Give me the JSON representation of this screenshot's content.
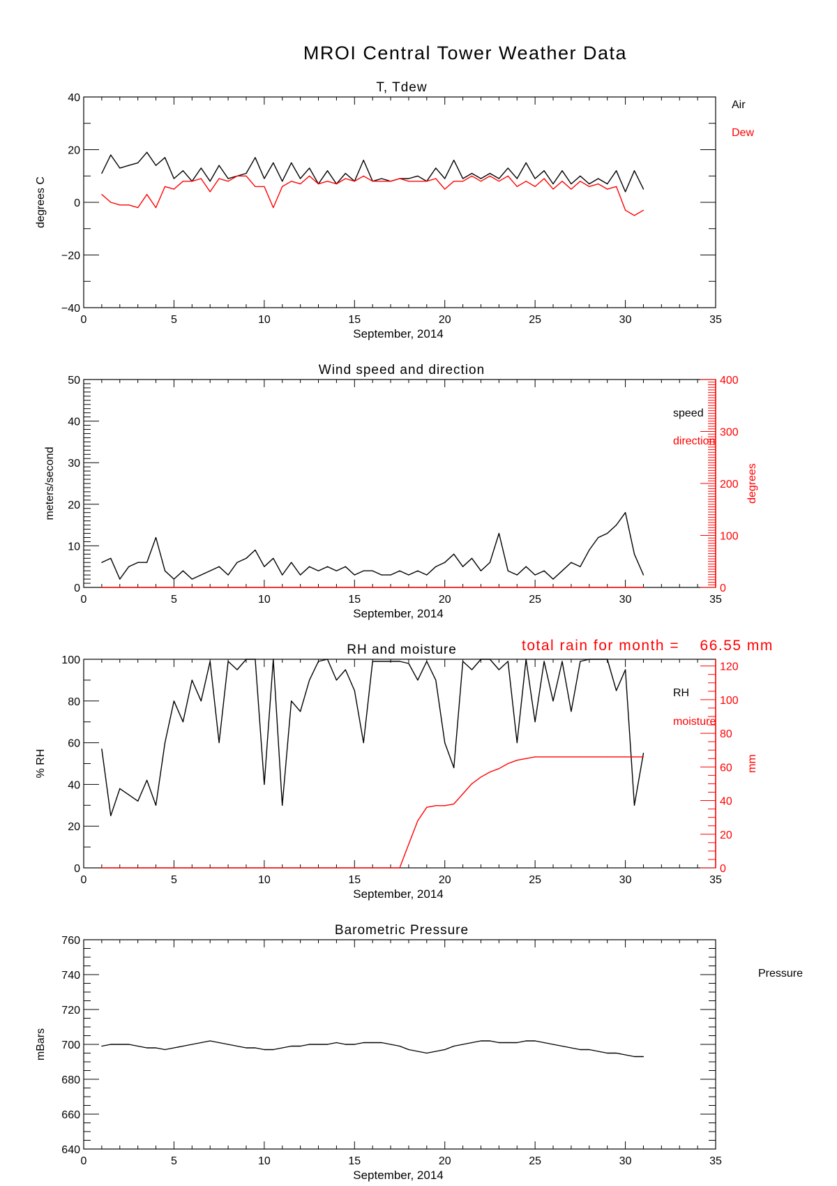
{
  "title": "MROI Central Tower Weather Data",
  "rain_note": "total rain for month =    66.55 mm",
  "colors": {
    "primary": "#000000",
    "secondary": "#ff0000"
  },
  "chart_data": [
    {
      "type": "line",
      "title": "T, Tdew",
      "xlabel": "September, 2014",
      "ylabel": "degrees C",
      "xlim": [
        0,
        35
      ],
      "ylim": [
        -40,
        40
      ],
      "xticks": [
        0,
        5,
        10,
        15,
        20,
        25,
        30,
        35
      ],
      "yticks": [
        -40,
        -20,
        0,
        20,
        40
      ],
      "x": [
        1,
        1.5,
        2,
        2.5,
        3,
        3.5,
        4,
        4.5,
        5,
        5.5,
        6,
        6.5,
        7,
        7.5,
        8,
        8.5,
        9,
        9.5,
        10,
        10.5,
        11,
        11.5,
        12,
        12.5,
        13,
        13.5,
        14,
        14.5,
        15,
        15.5,
        16,
        16.5,
        17,
        17.5,
        18,
        18.5,
        19,
        19.5,
        20,
        20.5,
        21,
        21.5,
        22,
        22.5,
        23,
        23.5,
        24,
        24.5,
        25,
        25.5,
        26,
        26.5,
        27,
        27.5,
        28,
        28.5,
        29,
        29.5,
        30,
        30.5,
        31
      ],
      "series": [
        {
          "name": "Air",
          "color": "#000000",
          "values": [
            11,
            18,
            13,
            14,
            15,
            19,
            14,
            17,
            9,
            12,
            8,
            13,
            8,
            14,
            9,
            10,
            11,
            17,
            9,
            15,
            8,
            15,
            9,
            13,
            7,
            12,
            7,
            11,
            8,
            16,
            8,
            9,
            8,
            9,
            9,
            10,
            8,
            13,
            9,
            16,
            9,
            11,
            9,
            11,
            9,
            13,
            9,
            15,
            9,
            12,
            7,
            12,
            7,
            10,
            7,
            9,
            7,
            12,
            4,
            12,
            5
          ]
        },
        {
          "name": "Dew",
          "color": "#ff0000",
          "values": [
            3,
            0,
            -1,
            -1,
            -2,
            3,
            -2,
            6,
            5,
            8,
            8,
            9,
            4,
            9,
            8,
            10,
            10,
            6,
            6,
            -2,
            6,
            8,
            7,
            10,
            7,
            8,
            7,
            9,
            8,
            10,
            8,
            8,
            8,
            9,
            8,
            8,
            8,
            9,
            5,
            8,
            8,
            10,
            8,
            10,
            8,
            10,
            6,
            8,
            6,
            9,
            5,
            8,
            5,
            8,
            6,
            7,
            5,
            6,
            -3,
            -5,
            -3
          ]
        }
      ]
    },
    {
      "type": "line",
      "title": "Wind speed and direction",
      "xlabel": "September, 2014",
      "ylabel": "meters/second",
      "y2label": "degrees",
      "xlim": [
        0,
        35
      ],
      "ylim": [
        0,
        50
      ],
      "y2lim": [
        0,
        400
      ],
      "xticks": [
        0,
        5,
        10,
        15,
        20,
        25,
        30,
        35
      ],
      "yticks": [
        0,
        10,
        20,
        30,
        40,
        50
      ],
      "y2ticks": [
        0,
        100,
        200,
        300,
        400
      ],
      "x": [
        1,
        1.5,
        2,
        2.5,
        3,
        3.5,
        4,
        4.5,
        5,
        5.5,
        6,
        6.5,
        7,
        7.5,
        8,
        8.5,
        9,
        9.5,
        10,
        10.5,
        11,
        11.5,
        12,
        12.5,
        13,
        13.5,
        14,
        14.5,
        15,
        15.5,
        16,
        16.5,
        17,
        17.5,
        18,
        18.5,
        19,
        19.5,
        20,
        20.5,
        21,
        21.5,
        22,
        22.5,
        23,
        23.5,
        24,
        24.5,
        25,
        25.5,
        26,
        26.5,
        27,
        27.5,
        28,
        28.5,
        29,
        29.5,
        30,
        30.5,
        31
      ],
      "series": [
        {
          "name": "speed",
          "color": "#000000",
          "axis": "left",
          "values": [
            6,
            7,
            2,
            5,
            6,
            6,
            12,
            4,
            2,
            4,
            2,
            3,
            4,
            5,
            3,
            6,
            7,
            9,
            5,
            7,
            3,
            6,
            3,
            5,
            4,
            5,
            4,
            5,
            3,
            4,
            4,
            3,
            3,
            4,
            3,
            4,
            3,
            5,
            6,
            8,
            5,
            7,
            4,
            6,
            13,
            4,
            3,
            5,
            3,
            4,
            2,
            4,
            6,
            5,
            9,
            12,
            13,
            15,
            18,
            8,
            3
          ]
        },
        {
          "name": "direction",
          "color": "#ff0000",
          "axis": "right",
          "values": [
            0,
            0,
            0,
            0,
            0,
            0,
            0,
            0,
            0,
            0,
            0,
            0,
            0,
            0,
            0,
            0,
            0,
            0,
            0,
            0,
            0,
            0,
            0,
            0,
            0,
            0,
            0,
            0,
            0,
            0,
            0,
            0,
            0,
            0,
            0,
            0,
            0,
            0,
            0,
            0,
            0,
            0,
            0,
            0,
            0,
            0,
            0,
            0,
            0,
            0,
            0,
            0,
            0,
            0,
            0,
            0,
            0,
            0,
            0,
            0,
            0
          ]
        }
      ]
    },
    {
      "type": "line",
      "title": "RH and moisture",
      "xlabel": "September, 2014",
      "ylabel": "% RH",
      "y2label": "mm",
      "xlim": [
        0,
        35
      ],
      "ylim": [
        0,
        100
      ],
      "y2lim": [
        0,
        124
      ],
      "xticks": [
        0,
        5,
        10,
        15,
        20,
        25,
        30,
        35
      ],
      "yticks": [
        0,
        20,
        40,
        60,
        80,
        100
      ],
      "y2ticks": [
        0,
        20,
        40,
        60,
        80,
        100,
        120
      ],
      "x": [
        1,
        1.5,
        2,
        2.5,
        3,
        3.5,
        4,
        4.5,
        5,
        5.5,
        6,
        6.5,
        7,
        7.5,
        8,
        8.5,
        9,
        9.5,
        10,
        10.5,
        11,
        11.5,
        12,
        12.5,
        13,
        13.5,
        14,
        14.5,
        15,
        15.5,
        16,
        16.5,
        17,
        17.5,
        18,
        18.5,
        19,
        19.5,
        20,
        20.5,
        21,
        21.5,
        22,
        22.5,
        23,
        23.5,
        24,
        24.5,
        25,
        25.5,
        26,
        26.5,
        27,
        27.5,
        28,
        28.5,
        29,
        29.5,
        30,
        30.5,
        31
      ],
      "series": [
        {
          "name": "RH",
          "color": "#000000",
          "axis": "left",
          "values": [
            57,
            25,
            38,
            35,
            32,
            42,
            30,
            60,
            80,
            70,
            90,
            80,
            99,
            60,
            99,
            95,
            100,
            100,
            40,
            100,
            30,
            80,
            75,
            90,
            99,
            100,
            90,
            95,
            85,
            60,
            99,
            99,
            99,
            99,
            98,
            90,
            99,
            90,
            60,
            48,
            99,
            95,
            100,
            100,
            95,
            99,
            60,
            100,
            70,
            99,
            80,
            99,
            75,
            99,
            100,
            100,
            100,
            85,
            95,
            30,
            55
          ]
        },
        {
          "name": "moisture",
          "color": "#ff0000",
          "axis": "right",
          "values": [
            0,
            0,
            0,
            0,
            0,
            0,
            0,
            0,
            0,
            0,
            0,
            0,
            0,
            0,
            0,
            0,
            0,
            0,
            0,
            0,
            0,
            0,
            0,
            0,
            0,
            0,
            0,
            0,
            0,
            0,
            0,
            0,
            0,
            0,
            14,
            28,
            36,
            37,
            37,
            38,
            44,
            50,
            54,
            57,
            59,
            62,
            64,
            65,
            66,
            66,
            66,
            66,
            66,
            66,
            66,
            66,
            66,
            66,
            66,
            66,
            66
          ]
        }
      ]
    },
    {
      "type": "line",
      "title": "Barometric Pressure",
      "xlabel": "September, 2014",
      "ylabel": "mBars",
      "xlim": [
        0,
        35
      ],
      "ylim": [
        640,
        760
      ],
      "xticks": [
        0,
        5,
        10,
        15,
        20,
        25,
        30,
        35
      ],
      "yticks": [
        640,
        660,
        680,
        700,
        720,
        740,
        760
      ],
      "x": [
        1,
        1.5,
        2,
        2.5,
        3,
        3.5,
        4,
        4.5,
        5,
        5.5,
        6,
        6.5,
        7,
        7.5,
        8,
        8.5,
        9,
        9.5,
        10,
        10.5,
        11,
        11.5,
        12,
        12.5,
        13,
        13.5,
        14,
        14.5,
        15,
        15.5,
        16,
        16.5,
        17,
        17.5,
        18,
        18.5,
        19,
        19.5,
        20,
        20.5,
        21,
        21.5,
        22,
        22.5,
        23,
        23.5,
        24,
        24.5,
        25,
        25.5,
        26,
        26.5,
        27,
        27.5,
        28,
        28.5,
        29,
        29.5,
        30,
        30.5,
        31
      ],
      "series": [
        {
          "name": "Pressure",
          "color": "#000000",
          "values": [
            699,
            700,
            700,
            700,
            699,
            698,
            698,
            697,
            698,
            699,
            700,
            701,
            702,
            701,
            700,
            699,
            698,
            698,
            697,
            697,
            698,
            699,
            699,
            700,
            700,
            700,
            701,
            700,
            700,
            701,
            701,
            701,
            700,
            699,
            697,
            696,
            695,
            696,
            697,
            699,
            700,
            701,
            702,
            702,
            701,
            701,
            701,
            702,
            702,
            701,
            700,
            699,
            698,
            697,
            697,
            696,
            695,
            695,
            694,
            693,
            693
          ]
        }
      ]
    }
  ]
}
